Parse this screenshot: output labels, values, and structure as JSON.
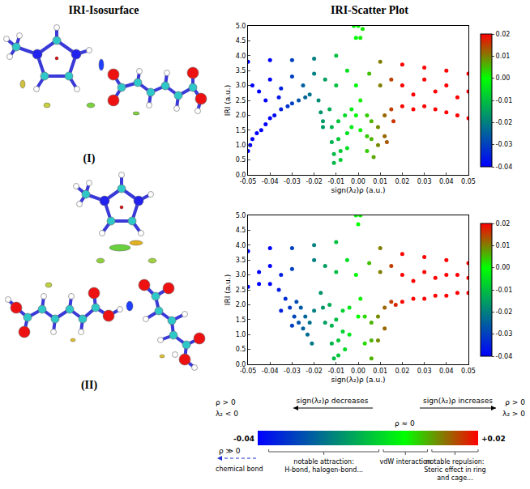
{
  "heading": "IRI-Scatter Plot",
  "isosurface": {
    "title": "IRI-Isosurface",
    "labels": [
      "(I)",
      "(II)"
    ]
  },
  "chart_data": [
    {
      "type": "scatter",
      "grid": false,
      "xlabel": "sign(λ₂)ρ (a.u.)",
      "ylabel": "IRI (a.u.)",
      "xlim": [
        -0.05,
        0.05
      ],
      "ylim": [
        0,
        5
      ],
      "xticks": [
        -0.05,
        -0.04,
        -0.03,
        -0.02,
        -0.01,
        {
          "value": 0,
          "label": "0.00"
        },
        0.01,
        0.02,
        0.03,
        0.04,
        0.05
      ],
      "yticks": [
        {
          "value": 0,
          "label": "0.0"
        },
        0.5,
        {
          "value": 1,
          "label": "1.0"
        },
        1.5,
        {
          "value": 2,
          "label": "2.0"
        },
        2.5,
        {
          "value": 3,
          "label": "3.0"
        },
        3.5,
        {
          "value": 4,
          "label": "4.0"
        },
        4.5,
        {
          "value": 5,
          "label": "5.0"
        }
      ],
      "colorbar": {
        "range": [
          -0.04,
          0.02
        ],
        "ticks": [
          -0.04,
          -0.03,
          -0.02,
          -0.01,
          {
            "value": 0,
            "label": "0.00"
          },
          0.01,
          0.02
        ]
      },
      "x": [
        -0.05,
        -0.04,
        -0.03,
        -0.02,
        -0.01,
        0.01,
        0.02,
        0.03,
        0.04,
        0.05,
        0,
        -0.002,
        -0.001,
        0.001,
        0.002,
        -0.001,
        -0.001,
        0.001,
        0.001,
        -0.05,
        -0.049,
        -0.048,
        -0.046,
        -0.044,
        -0.042,
        -0.04,
        -0.038,
        -0.035,
        -0.032,
        -0.03,
        -0.027,
        -0.024,
        -0.022,
        -0.045,
        -0.04,
        -0.035,
        -0.03,
        -0.025,
        -0.048,
        -0.042,
        -0.036,
        -0.018,
        -0.017,
        -0.016,
        -0.016,
        -0.013,
        -0.012,
        -0.012,
        -0.011,
        -0.011,
        -0.009,
        -0.009,
        -0.008,
        -0.008,
        -0.006,
        -0.005,
        -0.005,
        -0.003,
        -0.003,
        0.004,
        0.004,
        0.004,
        0.006,
        0.006,
        0.007,
        0.009,
        0.009,
        0.012,
        0.012,
        0.013,
        0.015,
        0.016,
        0.02,
        0.025,
        0.03,
        0.035,
        0.04,
        0.045,
        0.05,
        0.02,
        0.025,
        0.03,
        0.035,
        0.04,
        0.045,
        0.05,
        0.015,
        0.01,
        -0.01,
        -0.015,
        -0.005,
        0.005,
        -0.02
      ],
      "values": [
        3.8,
        3.85,
        3.85,
        3.9,
        4.0,
        3.8,
        3.7,
        3.6,
        3.5,
        3.4,
        5.0,
        5.0,
        4.6,
        4.6,
        4.9,
        3.0,
        2.0,
        2.5,
        1.5,
        0.8,
        1.0,
        1.2,
        1.4,
        1.5,
        1.7,
        1.9,
        2.0,
        2.2,
        2.3,
        2.4,
        2.5,
        2.6,
        2.7,
        2.8,
        3.2,
        2.9,
        3.3,
        3.0,
        3.0,
        2.5,
        2.6,
        2.5,
        2.1,
        1.8,
        1.6,
        2.2,
        1.6,
        1.1,
        0.7,
        0.4,
        1.8,
        1.2,
        0.8,
        0.5,
        2.0,
        1.4,
        0.9,
        2.2,
        1.6,
        2.0,
        1.3,
        0.8,
        1.8,
        1.2,
        0.6,
        1.6,
        1.0,
        2.0,
        1.3,
        1.1,
        2.2,
        1.8,
        2.3,
        2.2,
        2.3,
        2.2,
        2.1,
        2.0,
        1.9,
        3.0,
        2.7,
        3.2,
        2.8,
        3.0,
        2.6,
        2.8,
        3.2,
        3.0,
        3.0,
        3.2,
        3.5,
        3.4,
        3.4
      ]
    },
    {
      "type": "scatter",
      "grid": false,
      "xlabel": "sign(λ₂)ρ (a.u.)",
      "ylabel": "IRI (a.u.)",
      "xlim": [
        -0.05,
        0.05
      ],
      "ylim": [
        0,
        5
      ],
      "xticks": [
        -0.05,
        -0.04,
        -0.03,
        -0.02,
        -0.01,
        {
          "value": 0,
          "label": "0.00"
        },
        0.01,
        0.02,
        0.03,
        0.04,
        0.05
      ],
      "yticks": [
        {
          "value": 0,
          "label": "0.0"
        },
        0.5,
        {
          "value": 1,
          "label": "1.0"
        },
        1.5,
        {
          "value": 2,
          "label": "2.0"
        },
        2.5,
        {
          "value": 3,
          "label": "3.0"
        },
        3.5,
        {
          "value": 4,
          "label": "4.0"
        },
        4.5,
        {
          "value": 5,
          "label": "5.0"
        }
      ],
      "colorbar": {
        "range": [
          -0.04,
          0.02
        ],
        "ticks": [
          -0.04,
          -0.03,
          -0.02,
          -0.01,
          {
            "value": 0,
            "label": "0.00"
          },
          0.01,
          0.02
        ]
      },
      "x": [
        -0.05,
        -0.04,
        -0.03,
        -0.02,
        -0.01,
        0.01,
        0.02,
        0.03,
        0.04,
        0.05,
        -0.001,
        0,
        0.001,
        -0.001,
        0.001,
        0,
        -0.05,
        -0.045,
        -0.04,
        -0.036,
        -0.033,
        -0.031,
        -0.029,
        -0.027,
        -0.025,
        -0.023,
        -0.021,
        -0.035,
        -0.03,
        -0.028,
        -0.026,
        -0.024,
        -0.022,
        -0.02,
        -0.045,
        -0.04,
        -0.035,
        -0.03,
        -0.017,
        -0.016,
        -0.015,
        -0.013,
        -0.012,
        -0.012,
        -0.011,
        -0.01,
        -0.009,
        -0.009,
        -0.007,
        -0.007,
        -0.006,
        -0.004,
        -0.004,
        0.003,
        0.003,
        0.006,
        0.006,
        0.006,
        0.009,
        0.009,
        0.012,
        0.012,
        0.015,
        0.017,
        0.02,
        0.025,
        0.03,
        0.035,
        0.04,
        0.045,
        0.05,
        0.02,
        0.025,
        0.03,
        0.035,
        0.04,
        0.045,
        0.05,
        0.01,
        0.015,
        -0.01,
        -0.015,
        -0.005,
        0.005,
        -0.02
      ],
      "values": [
        3.8,
        3.9,
        3.9,
        4.0,
        4.1,
        3.9,
        3.7,
        3.6,
        3.5,
        3.4,
        5.0,
        4.7,
        5.0,
        3.0,
        2.2,
        1.6,
        2.6,
        2.7,
        2.7,
        2.5,
        2.2,
        1.9,
        1.6,
        1.4,
        1.2,
        1.0,
        0.7,
        1.8,
        1.3,
        2.1,
        1.9,
        1.6,
        1.4,
        1.8,
        3.1,
        3.3,
        3.0,
        3.2,
        2.4,
        1.9,
        1.4,
        2.0,
        1.3,
        0.7,
        0.2,
        1.5,
        0.8,
        0.3,
        1.8,
        1.1,
        0.5,
        1.9,
        1.0,
        1.6,
        0.7,
        1.4,
        0.8,
        0.2,
        1.6,
        0.8,
        1.9,
        1.2,
        2.1,
        2.0,
        2.1,
        2.2,
        2.2,
        2.3,
        2.3,
        2.4,
        2.4,
        3.0,
        2.8,
        3.1,
        2.9,
        3.0,
        3.0,
        2.9,
        3.1,
        3.3,
        3.1,
        3.3,
        3.5,
        3.4,
        3.5
      ]
    }
  ],
  "color_legend": {
    "ends": [
      {
        "value": -0.04,
        "label": "-0.04"
      },
      {
        "value": 0.02,
        "label": "+0.02"
      }
    ],
    "middle": {
      "value": 0,
      "label": "ρ ≈ 0"
    },
    "left": [
      "ρ > 0",
      "λ₂ < 0"
    ],
    "right": [
      "ρ > 0",
      "λ₂ > 0"
    ],
    "decreasing": "sign(λ₂)ρ decreases",
    "increasing": "sign(λ₂)ρ increases",
    "bond": {
      "condition": "ρ ≫ 0",
      "label": "chemical bond"
    },
    "regions": [
      {
        "lines": [
          "notable attraction:",
          "H-bond, halogen-bond..."
        ]
      },
      {
        "lines": [
          "vdW interaction"
        ]
      },
      {
        "lines": [
          "notable repulsion:",
          "Steric effect in ring",
          "and cage..."
        ]
      }
    ]
  }
}
